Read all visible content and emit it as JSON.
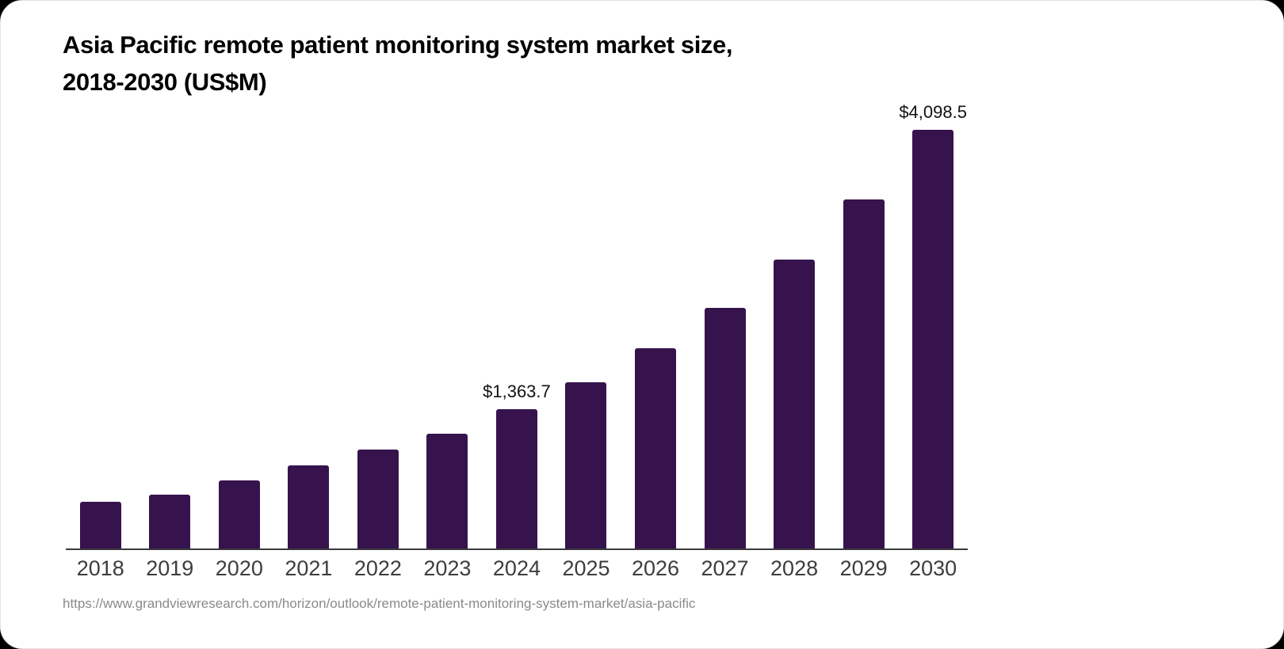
{
  "page": {
    "outer_background": "#000000",
    "card_background": "#ffffff"
  },
  "header": {
    "title_line1": "Asia Pacific remote patient monitoring system market size,",
    "title_line2": "2018-2030 (US$M)"
  },
  "source": {
    "url": "https://www.grandviewresearch.com/horizon/outlook/remote-patient-monitoring-system-market/asia-pacific"
  },
  "chart_data": {
    "type": "bar",
    "title": "Asia Pacific remote patient monitoring system market size, 2018-2030 (US$M)",
    "categories": [
      "2018",
      "2019",
      "2020",
      "2021",
      "2022",
      "2023",
      "2024",
      "2025",
      "2026",
      "2027",
      "2028",
      "2029",
      "2030"
    ],
    "values": [
      455,
      530,
      670,
      810,
      965,
      1125,
      1363.7,
      1630,
      1960,
      2355,
      2830,
      3415,
      4098.5
    ],
    "data_labels": [
      "",
      "",
      "",
      "",
      "",
      "",
      "$1,363.7",
      "",
      "",
      "",
      "",
      "",
      "$4,098.5"
    ],
    "xlabel": "",
    "ylabel": "",
    "ylim": [
      0,
      4300
    ],
    "grid": false,
    "legend": false,
    "yaxis_visible": false,
    "bar_color": "#37134D",
    "axis_line_color": "#3a3a3a",
    "tick_label_color": "#3d3d3d",
    "data_label_color": "#111111"
  }
}
